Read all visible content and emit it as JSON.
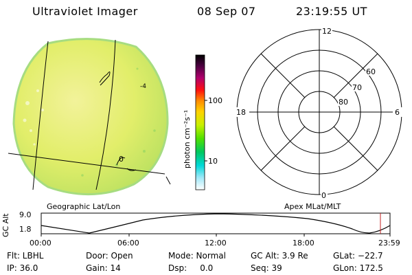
{
  "header": {
    "title": "Ultraviolet Imager",
    "date": "08 Sep 07",
    "time": "23:19:55 UT"
  },
  "colorbar": {
    "label": "photon cm⁻²s⁻¹",
    "ticks": [
      "100",
      "10"
    ],
    "scale": "log",
    "colors": [
      "#000000",
      "#4b0040",
      "#b0006c",
      "#ff1010",
      "#ff8c00",
      "#ffd200",
      "#c8f000",
      "#50e000",
      "#00c860",
      "#00d8d8",
      "#a0e8f8",
      "#ffffff"
    ]
  },
  "image_panel": {
    "label": "Geographic Lat/Lon",
    "contour_labels": [
      "0",
      "-4"
    ],
    "fill_color": "#e8f070"
  },
  "polar_plot": {
    "label": "Apex MLat/MLT",
    "mlt_labels": {
      "top": "12",
      "left": "18",
      "right": "6",
      "bottom": "0"
    },
    "lat_labels": [
      "60",
      "70",
      "80"
    ]
  },
  "altitude_plot": {
    "ylabel": "GC Alt",
    "yticks": [
      "9.0",
      "1.8"
    ],
    "xticks": [
      "00:00",
      "06:00",
      "12:00",
      "18:00",
      "23:59"
    ],
    "marker_color": "#c02020"
  },
  "footer": {
    "col1": [
      "Flt: LBHL",
      "IP: 36.0"
    ],
    "col2": [
      "Door: Open",
      "Gain: 14"
    ],
    "col3": [
      "Mode: Normal",
      "Dsp:     0.0"
    ],
    "col4": [
      "GC Alt: 3.9 Re",
      "Seq: 39"
    ],
    "col5": [
      "GLat: −22.7",
      "GLon: 172.5"
    ]
  }
}
